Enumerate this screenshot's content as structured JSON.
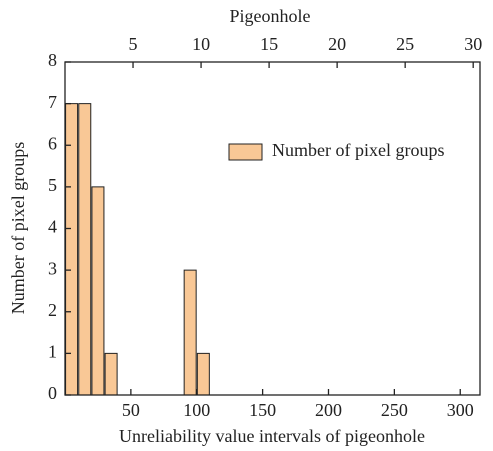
{
  "chart_data": {
    "type": "bar",
    "xlabel": "Unreliability value intervals of pigeonhole",
    "x2label": "Pigeonhole",
    "ylabel": "Number of pixel groups",
    "x": [
      5,
      15,
      25,
      35,
      95,
      105
    ],
    "series": [
      {
        "name": "Number of pixel groups",
        "color": "#f9c896",
        "values": [
          7,
          7,
          5,
          1,
          3,
          1
        ]
      }
    ],
    "xlim": [
      0,
      315
    ],
    "xticks": [
      50,
      100,
      150,
      200,
      250,
      300
    ],
    "x2lim": [
      0,
      30.5
    ],
    "x2ticks": [
      5,
      10,
      15,
      20,
      25,
      30
    ],
    "ylim": [
      0,
      8
    ],
    "yticks": [
      0,
      1,
      2,
      3,
      4,
      5,
      6,
      7,
      8
    ],
    "legend": "upper right"
  }
}
